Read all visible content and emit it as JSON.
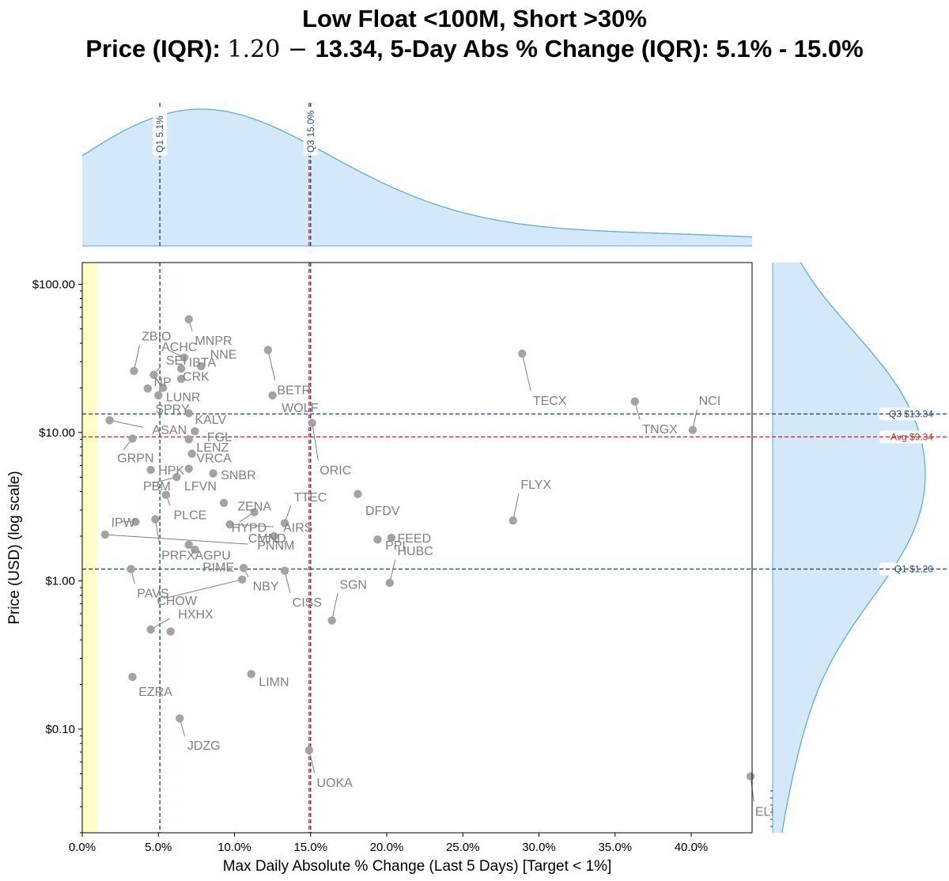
{
  "title": {
    "line1": "Low Float <100M, Short >30%",
    "line2_a": "Price (IQR): ",
    "line2_b": "1.20 − ",
    "line2_c": "13.34, 5-Day Abs % Change (IQR): 5.1% - 15.0%"
  },
  "colors": {
    "points": "#a3a3a3",
    "labels": "#808080",
    "q_line": "#1f4e7a",
    "avg_line": "#d62728",
    "kde_fill": "#d3e8f8",
    "kde_line": "#5aaee0",
    "target_band": "#ffffc8"
  },
  "chart_data": {
    "type": "scatter",
    "title": "Low Float <100M, Short >30%",
    "xlabel": "Max Daily Absolute % Change (Last 5 Days) [Target < 1%]",
    "ylabel": "Price (USD) (log scale)",
    "xlim": [
      0,
      44
    ],
    "ylim": [
      0.02,
      140
    ],
    "yscale": "log",
    "x_ticks": [
      0,
      5,
      10,
      15,
      20,
      25,
      30,
      35,
      40
    ],
    "x_tick_labels": [
      "0.0%",
      "5.0%",
      "10.0%",
      "15.0%",
      "20.0%",
      "25.0%",
      "30.0%",
      "35.0%",
      "40.0%"
    ],
    "y_ticks": [
      0.1,
      1,
      10,
      100
    ],
    "y_tick_labels": [
      "$0.10",
      "$1.00",
      "$10.00",
      "$100.00"
    ],
    "target_band": [
      0,
      1
    ],
    "reference_lines": {
      "x_q1": {
        "value": 5.1,
        "label": "Q1 5.1%"
      },
      "x_q3": {
        "value": 15.0,
        "label": "Q3 15.0%"
      },
      "x_mean": {
        "value": 14.9
      },
      "y_q1": {
        "value": 1.2,
        "label": "Q1 $1.20"
      },
      "y_q3": {
        "value": 13.34,
        "label": "Q3 $13.34"
      },
      "y_avg": {
        "value": 9.34,
        "label": "Avg $9.34"
      }
    },
    "points": [
      {
        "x": 7.0,
        "y": 58,
        "label": "MNPR",
        "lx": 7.4,
        "ly": 42
      },
      {
        "x": 3.4,
        "y": 26,
        "label": "ZBIO",
        "lx": 3.9,
        "ly": 45
      },
      {
        "x": 6.7,
        "y": 32,
        "label": "ACHC",
        "lx": 5.2,
        "ly": 38
      },
      {
        "x": 12.2,
        "y": 36,
        "label": "BETR",
        "lx": 12.8,
        "ly": 19.5
      },
      {
        "x": 28.9,
        "y": 34,
        "label": "TECX",
        "lx": 29.6,
        "ly": 16.5
      },
      {
        "x": 7.8,
        "y": 28,
        "label": "NNE",
        "lx": 8.4,
        "ly": 34
      },
      {
        "x": 6.5,
        "y": 27,
        "label": "IBTA",
        "lx": 7.0,
        "ly": 30
      },
      {
        "x": 4.7,
        "y": 24.5,
        "label": "SEI",
        "lx": 5.5,
        "ly": 31
      },
      {
        "x": 6.5,
        "y": 23,
        "label": "CRK",
        "lx": 6.6,
        "ly": 24
      },
      {
        "x": 4.3,
        "y": 19.8,
        "label": "NP",
        "lx": 4.7,
        "ly": 22
      },
      {
        "x": 5.3,
        "y": 20,
        "label": "LUNR",
        "lx": 5.5,
        "ly": 17.5
      },
      {
        "x": 5.0,
        "y": 17.8,
        "label": "SPRY",
        "lx": 4.8,
        "ly": 14.5
      },
      {
        "x": 12.5,
        "y": 17.8,
        "label": "WOLF",
        "lx": 13.1,
        "ly": 14.8
      },
      {
        "x": 7.0,
        "y": 13.5,
        "label": "KALV",
        "lx": 7.4,
        "ly": 12.3
      },
      {
        "x": 36.3,
        "y": 16.2,
        "label": "TNGX",
        "lx": 36.8,
        "ly": 10.6
      },
      {
        "x": 40.1,
        "y": 10.4,
        "label": "NCI",
        "lx": 40.5,
        "ly": 16.5
      },
      {
        "x": 1.8,
        "y": 12.1,
        "label": "ASAN",
        "lx": 4.6,
        "ly": 10.5
      },
      {
        "x": 3.3,
        "y": 9.1,
        "label": "GRPN",
        "lx": 2.3,
        "ly": 6.8
      },
      {
        "x": 15.1,
        "y": 11.6,
        "label": "ORIC",
        "lx": 15.6,
        "ly": 5.6
      },
      {
        "x": 7.4,
        "y": 10.2,
        "label": "FGL",
        "lx": 8.2,
        "ly": 9.4
      },
      {
        "x": 7.0,
        "y": 9.0,
        "label": "LENZ",
        "lx": 7.5,
        "ly": 8.0
      },
      {
        "x": 7.2,
        "y": 7.2,
        "label": "VRCA",
        "lx": 7.5,
        "ly": 6.8
      },
      {
        "x": 4.5,
        "y": 5.6,
        "label": "HPK",
        "lx": 5.0,
        "ly": 5.6
      },
      {
        "x": 7.0,
        "y": 5.7,
        "label": "LFVN",
        "lx": 6.7,
        "ly": 4.4
      },
      {
        "x": 6.2,
        "y": 5.0,
        "label": "PBM",
        "lx": 4.0,
        "ly": 4.4
      },
      {
        "x": 8.6,
        "y": 5.3,
        "label": "SNBR",
        "lx": 9.1,
        "ly": 5.2
      },
      {
        "x": 18.1,
        "y": 3.85,
        "label": "DFDV",
        "lx": 18.6,
        "ly": 3.0
      },
      {
        "x": 28.3,
        "y": 2.55,
        "label": "FLYX",
        "lx": 28.8,
        "ly": 4.5
      },
      {
        "x": 5.5,
        "y": 3.8,
        "label": "PLCE",
        "lx": 6.0,
        "ly": 2.8
      },
      {
        "x": 13.3,
        "y": 2.45,
        "label": "TTEC",
        "lx": 13.9,
        "ly": 3.7
      },
      {
        "x": 9.3,
        "y": 3.35,
        "label": "ZENA",
        "lx": 10.2,
        "ly": 3.2
      },
      {
        "x": 11.3,
        "y": 2.9,
        "label": "HYPD",
        "lx": 9.8,
        "ly": 2.3
      },
      {
        "x": 9.7,
        "y": 2.4,
        "label": "AIRS",
        "lx": 13.2,
        "ly": 2.3
      },
      {
        "x": 3.5,
        "y": 2.5,
        "label": "IPW",
        "lx": 1.9,
        "ly": 2.5
      },
      {
        "x": 4.8,
        "y": 2.6,
        "label": "PRFX",
        "lx": 5.2,
        "ly": 1.5
      },
      {
        "x": 1.5,
        "y": 2.05,
        "label": "PNNM",
        "lx": 11.5,
        "ly": 1.75
      },
      {
        "x": 12.6,
        "y": 2.0,
        "label": "CMND",
        "lx": 10.9,
        "ly": 1.95
      },
      {
        "x": 19.4,
        "y": 1.9,
        "label": "PPI",
        "lx": 19.9,
        "ly": 1.75
      },
      {
        "x": 20.3,
        "y": 1.95,
        "label": "FEED",
        "lx": 20.7,
        "ly": 1.95
      },
      {
        "x": 20.2,
        "y": 0.97,
        "label": "HUBC",
        "lx": 20.7,
        "ly": 1.6
      },
      {
        "x": 7.0,
        "y": 1.75,
        "label": "AGPU",
        "lx": 7.4,
        "ly": 1.5
      },
      {
        "x": 7.4,
        "y": 1.62,
        "label": "RIME",
        "lx": 7.9,
        "ly": 1.25
      },
      {
        "x": 3.2,
        "y": 1.2,
        "label": "PAVS",
        "lx": 3.6,
        "ly": 0.83
      },
      {
        "x": 10.6,
        "y": 1.22,
        "label": "NBY",
        "lx": 11.2,
        "ly": 0.93
      },
      {
        "x": 10.5,
        "y": 1.02,
        "label": "CHOW",
        "lx": 4.9,
        "ly": 0.74
      },
      {
        "x": 13.3,
        "y": 1.17,
        "label": "CISS",
        "lx": 13.8,
        "ly": 0.72
      },
      {
        "x": 16.4,
        "y": 0.54,
        "label": "SGN",
        "lx": 16.9,
        "ly": 0.95
      },
      {
        "x": 4.5,
        "y": 0.47,
        "label": "HXHX",
        "lx": 6.3,
        "ly": 0.6
      },
      {
        "x": 5.8,
        "y": 0.455,
        "label": "HXHX_pt"
      },
      {
        "x": 3.3,
        "y": 0.225,
        "label": "EZRA",
        "lx": 3.7,
        "ly": 0.18
      },
      {
        "x": 11.1,
        "y": 0.235,
        "label": "LIMN",
        "lx": 11.6,
        "ly": 0.21
      },
      {
        "x": 6.4,
        "y": 0.118,
        "label": "JDZG",
        "lx": 6.9,
        "ly": 0.078
      },
      {
        "x": 14.9,
        "y": 0.072,
        "label": "UOKA",
        "lx": 15.4,
        "ly": 0.044
      },
      {
        "x": 43.9,
        "y": 0.048,
        "label": "ELI",
        "lx": 44.2,
        "ly": 0.028
      }
    ]
  }
}
